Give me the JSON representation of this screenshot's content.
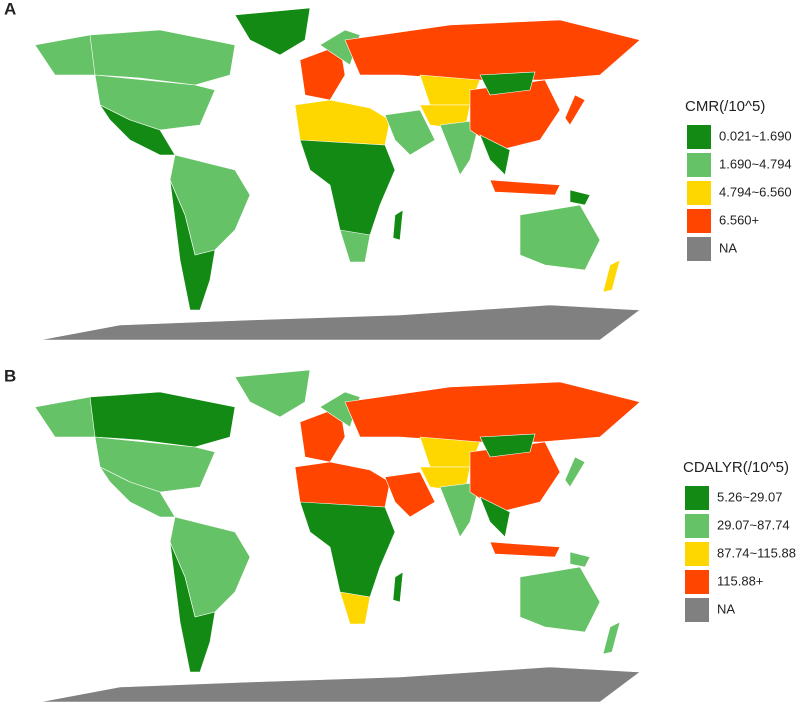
{
  "panels": [
    {
      "label": "A",
      "legend": {
        "title": "CMR(/10^5)",
        "items": [
          {
            "label": "0.021~1.690",
            "color": "#138a13"
          },
          {
            "label": "1.690~4.794",
            "color": "#66c266"
          },
          {
            "label": "4.794~6.560",
            "color": "#ffd700"
          },
          {
            "label": "6.560+",
            "color": "#ff4500"
          },
          {
            "label": "NA",
            "color": "#808080"
          }
        ]
      }
    },
    {
      "label": "B",
      "legend": {
        "title": "CDALYR(/10^5)",
        "items": [
          {
            "label": "5.26~29.07",
            "color": "#138a13"
          },
          {
            "label": "29.07~87.74",
            "color": "#66c266"
          },
          {
            "label": "87.74~115.88",
            "color": "#ffd700"
          },
          {
            "label": "115.88+",
            "color": "#ff4500"
          },
          {
            "label": "NA",
            "color": "#808080"
          }
        ]
      }
    }
  ]
}
